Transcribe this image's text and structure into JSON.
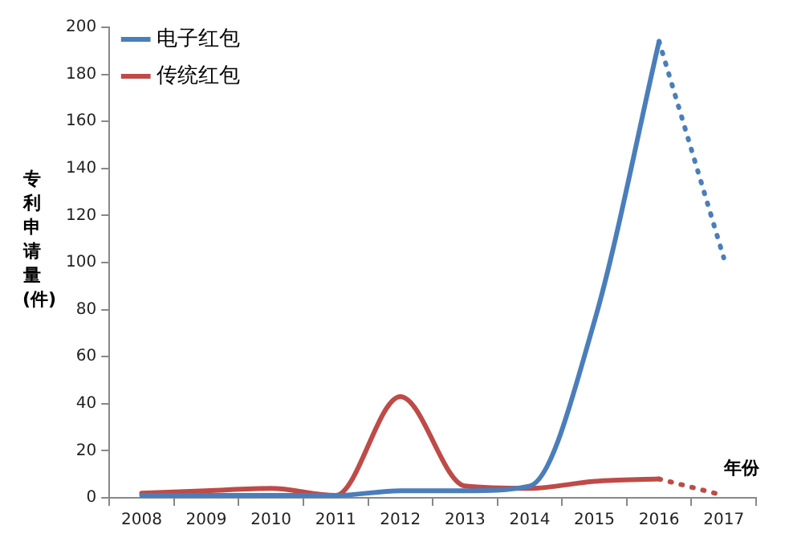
{
  "chart_data": {
    "type": "line",
    "xlabel": "年份",
    "ylabel": "专利申请量(件)",
    "categories": [
      "2008",
      "2009",
      "2010",
      "2011",
      "2012",
      "2013",
      "2014",
      "2015",
      "2016",
      "2017"
    ],
    "series": [
      {
        "name": "电子红包",
        "color": "#4a7ebb",
        "values": [
          1,
          1,
          1,
          1,
          3,
          3,
          5,
          75,
          194,
          null
        ],
        "line_style": "solid"
      },
      {
        "name": "传统红包",
        "color": "#be4b48",
        "values": [
          2,
          3,
          4,
          1,
          43,
          5,
          4,
          7,
          8,
          null
        ],
        "line_style": "solid"
      },
      {
        "color": "#4a7ebb",
        "values": [
          null,
          null,
          null,
          null,
          null,
          null,
          null,
          null,
          194,
          102
        ],
        "line_style": "dotted"
      },
      {
        "color": "#be4b48",
        "values": [
          null,
          null,
          null,
          null,
          null,
          null,
          null,
          null,
          8,
          1
        ],
        "line_style": "dotted"
      }
    ],
    "ylim": [
      0,
      200
    ],
    "yticks": [
      0,
      20,
      40,
      60,
      80,
      100,
      120,
      140,
      160,
      180,
      200
    ],
    "grid": false,
    "legend": "top left",
    "marker": "none"
  }
}
